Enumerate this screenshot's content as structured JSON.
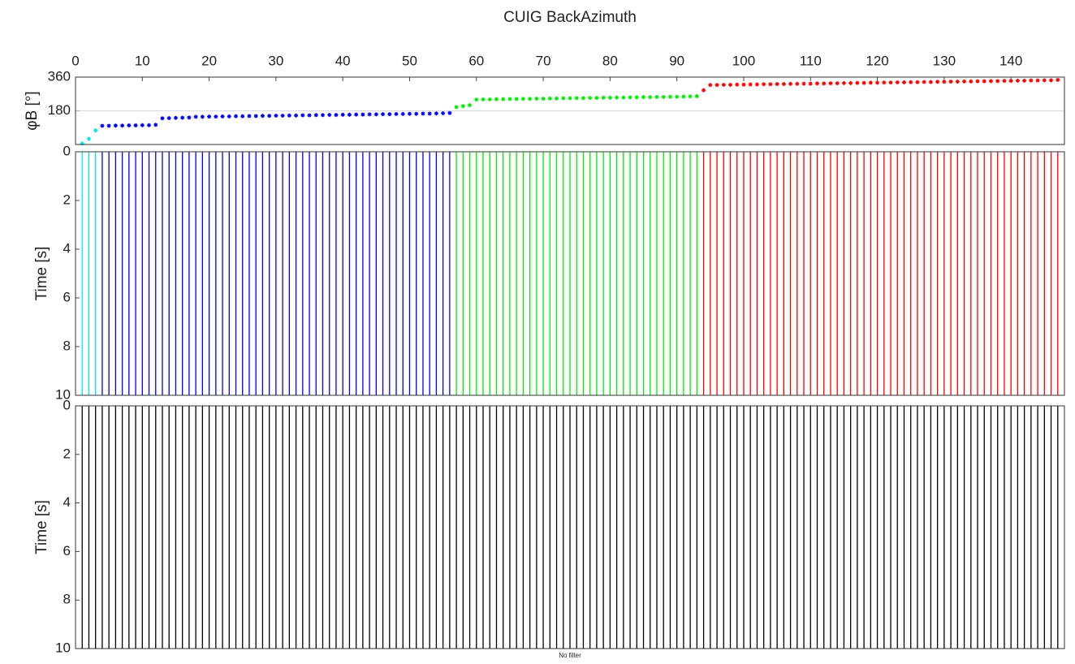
{
  "chart_data": [
    {
      "type": "scatter",
      "title": "CUIG BackAzimuth",
      "ylabel": "φB [°]",
      "xlim": [
        0,
        148
      ],
      "xticks": [
        0,
        10,
        20,
        30,
        40,
        50,
        60,
        70,
        80,
        90,
        100,
        110,
        120,
        130,
        140
      ],
      "ylim": [
        0,
        360
      ],
      "yticks": [
        180,
        360
      ],
      "grid": true,
      "series": [
        {
          "color": "#00e5ee",
          "x": [
            1,
            2,
            3
          ],
          "values": [
            5,
            30,
            75
          ]
        },
        {
          "color": "#0000ff",
          "x": [
            4,
            5,
            6,
            7,
            8,
            9,
            10,
            11,
            12,
            13,
            14,
            15,
            16,
            17,
            18,
            19,
            20,
            21,
            22,
            23,
            24,
            25,
            26,
            27,
            28,
            29,
            30,
            31,
            32,
            33,
            34,
            35,
            36,
            37,
            38,
            39,
            40,
            41,
            42,
            43,
            44,
            45,
            46,
            47,
            48,
            49,
            50,
            51,
            52,
            53,
            54,
            55,
            56
          ],
          "values": [
            100,
            100,
            101,
            101,
            102,
            102,
            103,
            103,
            105,
            140,
            141,
            142,
            143,
            144,
            148,
            148,
            149,
            149,
            150,
            150,
            151,
            151,
            152,
            152,
            153,
            153,
            154,
            154,
            155,
            155,
            156,
            156,
            157,
            157,
            158,
            158,
            159,
            159,
            160,
            160,
            161,
            161,
            162,
            162,
            163,
            163,
            164,
            164,
            165,
            165,
            166,
            167,
            168
          ]
        },
        {
          "color": "#00ee00",
          "x": [
            57,
            58,
            59,
            60,
            61,
            62,
            63,
            64,
            65,
            66,
            67,
            68,
            69,
            70,
            71,
            72,
            73,
            74,
            75,
            76,
            77,
            78,
            79,
            80,
            81,
            82,
            83,
            84,
            85,
            86,
            87,
            88,
            89,
            90,
            91,
            92,
            93
          ],
          "values": [
            200,
            205,
            210,
            240,
            241,
            241,
            242,
            242,
            243,
            243,
            244,
            244,
            245,
            245,
            246,
            246,
            247,
            247,
            248,
            248,
            249,
            249,
            250,
            250,
            251,
            251,
            252,
            252,
            253,
            253,
            254,
            254,
            255,
            255,
            256,
            257,
            258
          ]
        },
        {
          "color": "#ff0000",
          "x": [
            94,
            95,
            96,
            97,
            98,
            99,
            100,
            101,
            102,
            103,
            104,
            105,
            106,
            107,
            108,
            109,
            110,
            111,
            112,
            113,
            114,
            115,
            116,
            117,
            118,
            119,
            120,
            121,
            122,
            123,
            124,
            125,
            126,
            127,
            128,
            129,
            130,
            131,
            132,
            133,
            134,
            135,
            136,
            137,
            138,
            139,
            140,
            141,
            142,
            143,
            144,
            145,
            146,
            147
          ],
          "values": [
            290,
            318,
            318,
            319,
            319,
            320,
            320,
            321,
            321,
            322,
            322,
            323,
            323,
            324,
            324,
            325,
            325,
            326,
            326,
            327,
            327,
            328,
            328,
            329,
            329,
            330,
            330,
            331,
            331,
            332,
            332,
            333,
            333,
            334,
            334,
            335,
            335,
            336,
            336,
            337,
            337,
            338,
            338,
            339,
            339,
            340,
            340,
            341,
            341,
            342,
            342,
            343,
            343,
            345
          ]
        }
      ]
    },
    {
      "type": "wiggle",
      "ylabel": "Time [s]",
      "ylim": [
        10,
        0
      ],
      "yticks": [
        0,
        2,
        4,
        6,
        8,
        10
      ]
    },
    {
      "type": "wiggle",
      "ylabel": "Time [s]",
      "ylim": [
        10,
        0
      ],
      "yticks": [
        0,
        2,
        4,
        6,
        8,
        10
      ],
      "color": "#000000",
      "note": "No filter"
    }
  ]
}
